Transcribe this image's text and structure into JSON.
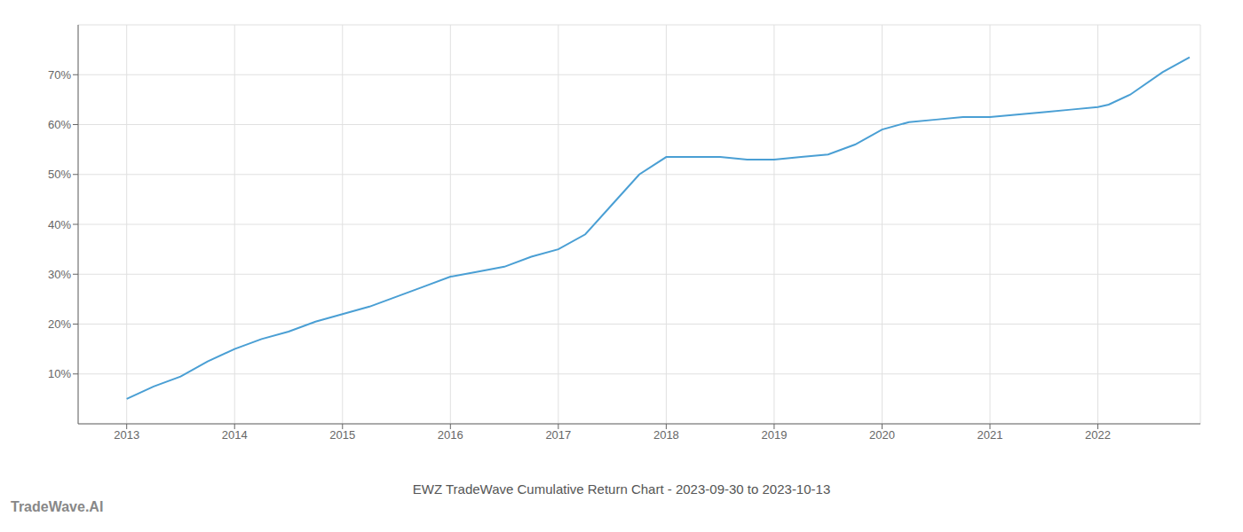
{
  "chart_data": {
    "type": "line",
    "title": "EWZ TradeWave Cumulative Return Chart - 2023-09-30 to 2023-10-13",
    "annotations": [
      "TradeWave.AI"
    ],
    "x": [
      2013.0,
      2013.25,
      2013.5,
      2013.75,
      2014.0,
      2014.25,
      2014.5,
      2014.75,
      2015.0,
      2015.25,
      2015.5,
      2015.75,
      2016.0,
      2016.25,
      2016.5,
      2016.75,
      2017.0,
      2017.25,
      2017.5,
      2017.75,
      2018.0,
      2018.25,
      2018.5,
      2018.75,
      2019.0,
      2019.25,
      2019.5,
      2019.75,
      2020.0,
      2020.25,
      2020.5,
      2020.75,
      2021.0,
      2021.25,
      2021.5,
      2021.75,
      2022.0,
      2022.1,
      2022.3,
      2022.6,
      2022.85
    ],
    "values": [
      5.0,
      7.5,
      9.5,
      12.5,
      15.0,
      17.0,
      18.5,
      20.5,
      22.0,
      23.5,
      25.5,
      27.5,
      29.5,
      30.5,
      31.5,
      33.5,
      35.0,
      38.0,
      44.0,
      50.0,
      53.5,
      53.5,
      53.5,
      53.0,
      53.0,
      53.5,
      54.0,
      56.0,
      59.0,
      60.5,
      61.0,
      61.5,
      61.5,
      62.0,
      62.5,
      63.0,
      63.5,
      64.0,
      66.0,
      70.5,
      73.5
    ],
    "color": "#4a9fd4",
    "xlim": [
      2012.55,
      2022.95
    ],
    "xticks": [
      2013,
      2014,
      2015,
      2016,
      2017,
      2018,
      2019,
      2020,
      2021,
      2022
    ],
    "ylim": [
      0,
      80
    ],
    "yticks": [
      {
        "value": 10,
        "label": "10%"
      },
      {
        "value": 20,
        "label": "20%"
      },
      {
        "value": 30,
        "label": "30%"
      },
      {
        "value": 40,
        "label": "40%"
      },
      {
        "value": 50,
        "label": "50%"
      },
      {
        "value": 60,
        "label": "60%"
      },
      {
        "value": 70,
        "label": "70%"
      }
    ],
    "grid": true
  }
}
